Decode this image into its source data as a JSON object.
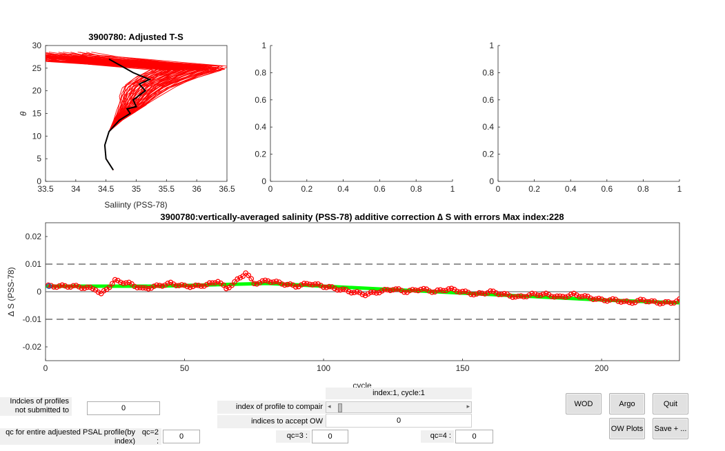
{
  "ts_plot": {
    "title": "3900780: Adjusted T-S",
    "xlabel": "Saliinty (PSS-78)",
    "ylabel": "θ",
    "xticks": [
      "33.5",
      "34",
      "34.5",
      "35",
      "35.5",
      "36",
      "36.5"
    ],
    "yticks": [
      "0",
      "5",
      "10",
      "15",
      "20",
      "25",
      "30"
    ]
  },
  "empty_plot_1": {
    "xticks": [
      "0",
      "0.2",
      "0.4",
      "0.6",
      "0.8",
      "1"
    ],
    "yticks": [
      "0",
      "0.2",
      "0.4",
      "0.6",
      "0.8",
      "1"
    ]
  },
  "empty_plot_2": {
    "xticks": [
      "0",
      "0.2",
      "0.4",
      "0.6",
      "0.8",
      "1"
    ],
    "yticks": [
      "0",
      "0.2",
      "0.4",
      "0.6",
      "0.8",
      "1"
    ]
  },
  "correction_plot": {
    "title": "3900780:vertically-averaged salinity (PSS-78) additive correction ∆ S with errors Max index:228",
    "xlabel": "cycle",
    "ylabel": "∆ S (PSS-78)",
    "xticks": [
      "0",
      "50",
      "100",
      "150",
      "200"
    ],
    "yticks": [
      "0.02",
      "0.01",
      "0",
      "-0.01",
      "-0.02"
    ]
  },
  "chart_data": [
    {
      "type": "line",
      "title": "3900780: Adjusted T-S",
      "xlabel": "Saliinty (PSS-78)",
      "ylabel": "θ",
      "xlim": [
        33.5,
        36.5
      ],
      "ylim": [
        0,
        30
      ],
      "series": [
        {
          "color": "#ff0000",
          "x": [
            34.62,
            34.5,
            34.48,
            34.55,
            34.7,
            34.85,
            34.95,
            35.05,
            35.2,
            35.5,
            35.9,
            34.0,
            33.5
          ],
          "y": [
            2.5,
            5,
            8,
            11,
            13.5,
            15.5,
            17,
            19,
            21,
            23,
            25,
            27,
            28
          ]
        },
        {
          "color": "#000000",
          "x": [
            34.62,
            34.5,
            34.48,
            34.55,
            34.72,
            34.9,
            34.85,
            35.0,
            34.95,
            35.15,
            35.05,
            35.22,
            34.95,
            34.75,
            34.55
          ],
          "y": [
            2.5,
            5,
            8,
            11,
            13.5,
            15,
            16,
            16.5,
            18,
            20,
            21.5,
            22.5,
            24,
            25.5,
            27
          ]
        }
      ]
    },
    {
      "type": "line",
      "title": "3900780:vertically-averaged salinity (PSS-78) additive correction ∆ S with errors Max index:228",
      "xlabel": "cycle",
      "ylabel": "∆ S (PSS-78)",
      "xlim": [
        0,
        228
      ],
      "ylim": [
        -0.025,
        0.025
      ],
      "series": [
        {
          "color": "#ff0000",
          "x": [
            1,
            10,
            18,
            20,
            25,
            30,
            35,
            40,
            45,
            50,
            55,
            60,
            62,
            65,
            70,
            72,
            75,
            80,
            85,
            90,
            95,
            100,
            105,
            110,
            115,
            120,
            125,
            130,
            135,
            140,
            145,
            150,
            155,
            160,
            165,
            170,
            175,
            180,
            185,
            190,
            195,
            200,
            205,
            210,
            215,
            220,
            225,
            228
          ],
          "y": [
            0.002,
            0.002,
            0.001,
            -0.001,
            0.004,
            0.003,
            0.001,
            0.002,
            0.003,
            0.002,
            0.002,
            0.003,
            0.004,
            0.001,
            0.005,
            0.007,
            0.003,
            0.004,
            0.003,
            0.002,
            0.003,
            0.002,
            0.001,
            0.0,
            -0.001,
            0.0,
            0.001,
            0.0,
            0.001,
            0.0,
            0.001,
            0.0,
            -0.001,
            0.0,
            -0.001,
            -0.002,
            -0.001,
            -0.001,
            -0.002,
            -0.001,
            -0.002,
            -0.003,
            -0.003,
            -0.004,
            -0.003,
            -0.004,
            -0.004,
            -0.003
          ]
        },
        {
          "color": "#00ff00",
          "x": [
            0,
            40,
            80,
            120,
            160,
            200,
            228
          ],
          "y": [
            0.002,
            0.002,
            0.003,
            0.001,
            -0.001,
            -0.003,
            -0.004
          ]
        }
      ],
      "reference_lines": [
        0.01,
        0,
        -0.01
      ]
    }
  ],
  "controls": {
    "not_submitted_label": "Indcies of profiles not submitted to GDAC",
    "not_submitted_value": "0",
    "qc_entire_label": "qc for entire adjuested PSAL profile(by index)",
    "qc2_label": "qc=2 :",
    "qc2_value": "0",
    "slider_caption": "index:1, cycle:1",
    "compare_label": "index of profile to compair",
    "accept_ow_label": "indices to accept OW",
    "accept_ow_value": "0",
    "qc3_label": "qc=3 :",
    "qc3_value": "0",
    "qc4_label": "qc=4 :",
    "qc4_value": "0"
  },
  "buttons": {
    "wod": "WOD",
    "argo": "Argo",
    "quit": "Quit",
    "ow_plots": "OW Plots",
    "save": "Save + ..."
  }
}
